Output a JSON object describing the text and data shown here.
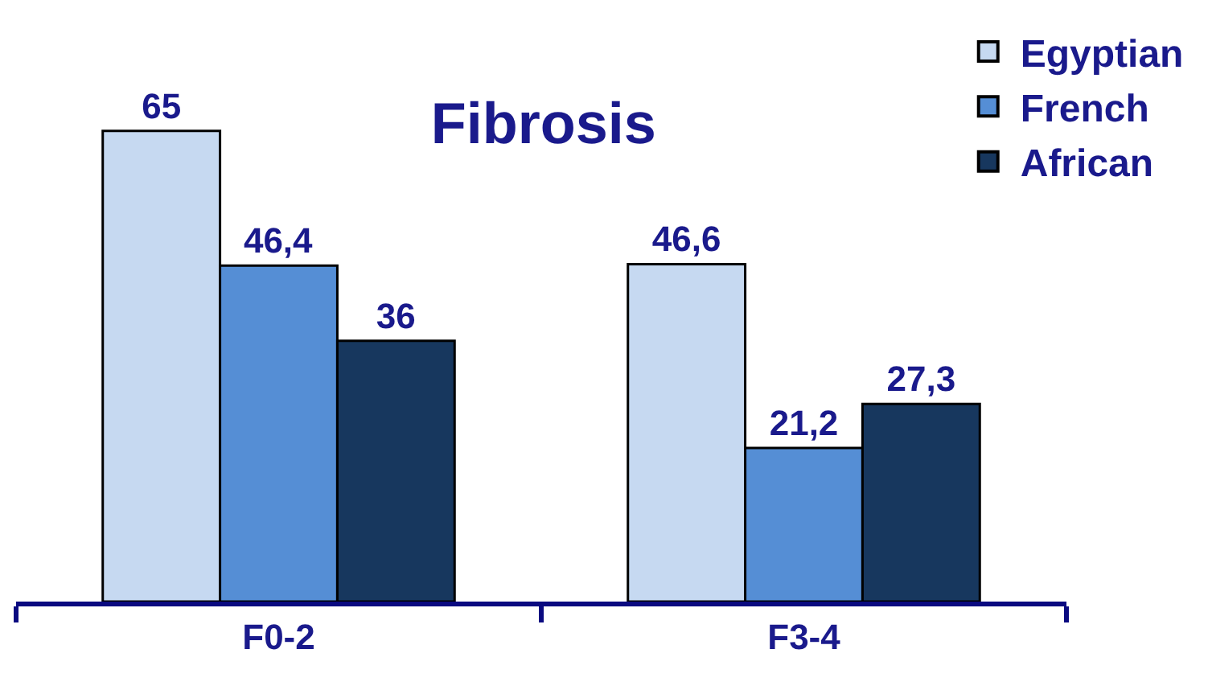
{
  "chart_data": {
    "type": "bar",
    "title": "Fibrosis",
    "categories": [
      "F0-2",
      "F3-4"
    ],
    "series": [
      {
        "name": "Egyptian",
        "color": "#c6d9f1",
        "values": [
          65,
          46.6
        ],
        "value_labels": [
          "65",
          "46,6"
        ]
      },
      {
        "name": "French",
        "color": "#558ed5",
        "values": [
          46.4,
          21.2
        ],
        "value_labels": [
          "46,4",
          "21,2"
        ]
      },
      {
        "name": "African",
        "color": "#17375e",
        "values": [
          36,
          27.3
        ],
        "value_labels": [
          "36",
          "27,3"
        ]
      }
    ],
    "legend": "top right"
  }
}
